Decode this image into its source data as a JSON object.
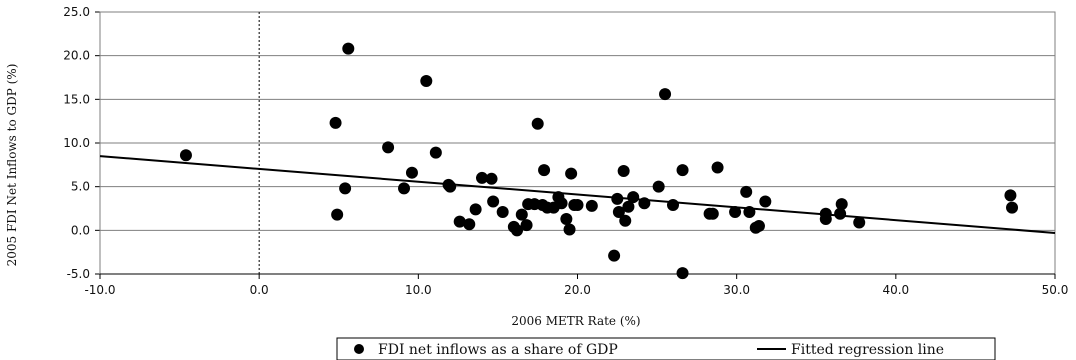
{
  "chart_data": {
    "type": "scatter",
    "title": "",
    "xlabel": "2006 METR Rate (%)",
    "ylabel": "2005 FDI Net Inflows to GDP (%)",
    "xlim": [
      -10,
      50
    ],
    "ylim": [
      -5,
      25
    ],
    "x_ticks": [
      -10,
      0,
      10,
      20,
      30,
      40,
      50
    ],
    "y_ticks": [
      -5,
      0,
      5,
      10,
      15,
      20,
      25
    ],
    "x_tick_labels": [
      "-10.0",
      "0.0",
      "10.0",
      "20.0",
      "30.0",
      "40.0",
      "50.0"
    ],
    "y_tick_labels": [
      "-5.0",
      "0.0",
      "5.0",
      "10.0",
      "15.0",
      "20.0",
      "25.0"
    ],
    "grid": "horizontal",
    "reference_line_x": 0,
    "legend_position": "bottom",
    "colors": {
      "points": "#000000",
      "line": "#000000",
      "grid": "#7f7f7f",
      "plot_border": "#7f7f7f"
    },
    "series": [
      {
        "name": "FDI net inflows as a share of GDP",
        "kind": "scatter",
        "points": [
          [
            -4.6,
            8.6
          ],
          [
            4.8,
            12.3
          ],
          [
            4.9,
            1.8
          ],
          [
            5.4,
            4.8
          ],
          [
            5.6,
            20.8
          ],
          [
            8.1,
            9.5
          ],
          [
            9.1,
            4.8
          ],
          [
            9.6,
            6.6
          ],
          [
            10.5,
            17.1
          ],
          [
            11.1,
            8.9
          ],
          [
            11.9,
            5.2
          ],
          [
            12.0,
            5.0
          ],
          [
            12.6,
            1.0
          ],
          [
            13.2,
            0.7
          ],
          [
            13.6,
            2.4
          ],
          [
            14.0,
            6.0
          ],
          [
            14.6,
            5.9
          ],
          [
            14.7,
            3.3
          ],
          [
            15.3,
            2.1
          ],
          [
            16.0,
            0.4
          ],
          [
            16.2,
            0.0
          ],
          [
            16.5,
            1.8
          ],
          [
            16.8,
            0.6
          ],
          [
            16.9,
            3.0
          ],
          [
            17.3,
            3.0
          ],
          [
            17.5,
            12.2
          ],
          [
            17.8,
            2.9
          ],
          [
            17.9,
            6.9
          ],
          [
            18.1,
            2.6
          ],
          [
            18.5,
            2.6
          ],
          [
            18.8,
            3.8
          ],
          [
            19.0,
            3.1
          ],
          [
            19.3,
            1.3
          ],
          [
            19.5,
            0.1
          ],
          [
            19.6,
            6.5
          ],
          [
            19.8,
            2.9
          ],
          [
            20.0,
            2.9
          ],
          [
            20.9,
            2.8
          ],
          [
            22.3,
            -2.9
          ],
          [
            22.5,
            3.6
          ],
          [
            22.6,
            2.1
          ],
          [
            22.9,
            6.8
          ],
          [
            23.0,
            1.1
          ],
          [
            23.2,
            2.7
          ],
          [
            23.5,
            3.8
          ],
          [
            24.2,
            3.1
          ],
          [
            25.1,
            5.0
          ],
          [
            25.5,
            15.6
          ],
          [
            26.0,
            2.9
          ],
          [
            26.6,
            6.9
          ],
          [
            26.6,
            -4.9
          ],
          [
            28.3,
            1.9
          ],
          [
            28.5,
            1.9
          ],
          [
            28.8,
            7.2
          ],
          [
            29.9,
            2.1
          ],
          [
            30.6,
            4.4
          ],
          [
            30.8,
            2.1
          ],
          [
            31.2,
            0.3
          ],
          [
            31.4,
            0.5
          ],
          [
            31.8,
            3.3
          ],
          [
            35.6,
            1.9
          ],
          [
            35.6,
            1.3
          ],
          [
            36.5,
            1.9
          ],
          [
            36.6,
            3.0
          ],
          [
            37.7,
            0.9
          ],
          [
            47.2,
            4.0
          ],
          [
            47.3,
            2.6
          ]
        ]
      },
      {
        "name": "Fitted regression line",
        "kind": "line",
        "points": [
          [
            -10,
            8.5
          ],
          [
            50,
            -0.3
          ]
        ]
      }
    ]
  }
}
